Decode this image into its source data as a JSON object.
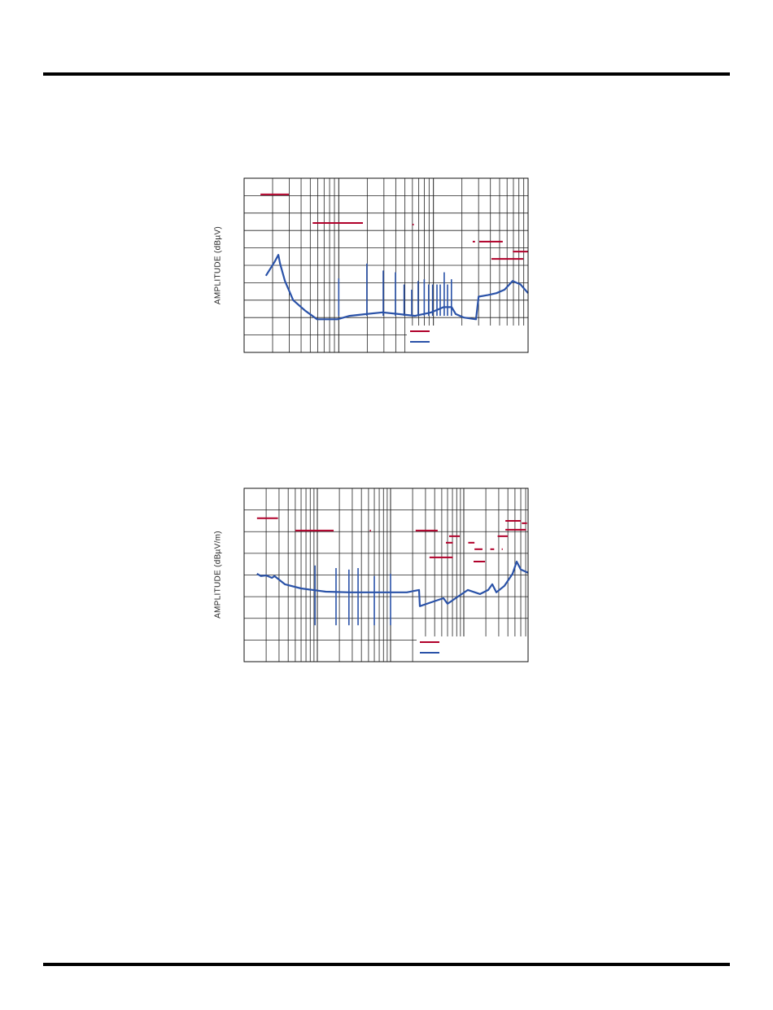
{
  "chart_data": [
    {
      "type": "line",
      "ylabel": "AMPLITUDE (dBµV)",
      "xscale": "log",
      "xlim": [
        1,
        1000
      ],
      "ylim": [
        0,
        10
      ],
      "grid": true,
      "legend": "bottom-right",
      "colors": {
        "limit": "#b0002a",
        "measured": "#2a52a8"
      },
      "measured": {
        "x": [
          1.7,
          2.1,
          2.3,
          2.4,
          2.7,
          3.3,
          4.4,
          5.9,
          7.2,
          9.7,
          13,
          19.5,
          29,
          43,
          64,
          95,
          128,
          156,
          172,
          210,
          282,
          300,
          380,
          463,
          563,
          687,
          832,
          1000
        ],
        "y": [
          4.4,
          5.2,
          5.6,
          5.1,
          4.1,
          3.0,
          2.4,
          1.9,
          1.9,
          1.9,
          2.1,
          2.2,
          2.3,
          2.2,
          2.1,
          2.3,
          2.6,
          2.6,
          2.2,
          2.0,
          1.9,
          3.2,
          3.3,
          3.4,
          3.6,
          4.1,
          3.9,
          3.4
        ]
      },
      "spikes": [
        [
          10,
          4.25
        ],
        [
          19.8,
          5.1
        ],
        [
          29.5,
          4.7
        ],
        [
          39.7,
          4.6
        ],
        [
          49,
          3.9
        ],
        [
          59,
          3.6
        ],
        [
          69,
          4.1
        ],
        [
          80,
          4.2
        ],
        [
          89,
          3.9
        ],
        [
          98,
          3.9
        ],
        [
          109,
          3.9
        ],
        [
          118,
          3.9
        ],
        [
          130,
          4.6
        ],
        [
          141,
          3.9
        ],
        [
          155,
          4.2
        ]
      ],
      "limits": [
        [
          1.49,
          2.97,
          9.07
        ],
        [
          5.3,
          18,
          7.43
        ],
        [
          60,
          62,
          7.34
        ],
        [
          260,
          275,
          6.36
        ],
        [
          305,
          540,
          6.36
        ],
        [
          410,
          890,
          5.37
        ],
        [
          690,
          1000,
          5.79
        ]
      ]
    },
    {
      "type": "line",
      "ylabel": "AMPLITUDE (dBµV/m)",
      "xscale": "log",
      "xlim": [
        1,
        7550
      ],
      "ylim": [
        0,
        8
      ],
      "grid": true,
      "legend": "bottom-right",
      "colors": {
        "limit": "#b0002a",
        "measured": "#2a52a8"
      },
      "measured": {
        "x": [
          1.5,
          1.7,
          2,
          2.4,
          2.6,
          3.6,
          6,
          13,
          28,
          77,
          167,
          245,
          251,
          360,
          527,
          600,
          774,
          1136,
          1668,
          2154,
          2448,
          2783,
          3594,
          4642,
          5275,
          5995,
          7550
        ],
        "y": [
          4.06,
          3.95,
          3.98,
          3.87,
          3.95,
          3.57,
          3.38,
          3.23,
          3.2,
          3.2,
          3.2,
          3.31,
          2.56,
          2.74,
          2.93,
          2.67,
          2.93,
          3.31,
          3.12,
          3.31,
          3.57,
          3.2,
          3.5,
          4.06,
          4.62,
          4.25,
          4.1
        ]
      },
      "spikes": [
        [
          9.3,
          4.44
        ],
        [
          18,
          4.32
        ],
        [
          27,
          4.25
        ],
        [
          36,
          4.32
        ],
        [
          60,
          3.95
        ],
        [
          100,
          4.06
        ]
      ],
      "limits": [
        [
          1.5,
          2.9,
          6.62
        ],
        [
          5,
          16.7,
          6.05
        ],
        [
          52,
          54,
          6.05
        ],
        [
          220,
          440,
          6.05
        ],
        [
          340,
          710,
          4.81
        ],
        [
          570,
          710,
          5.49
        ],
        [
          630,
          880,
          5.79
        ],
        [
          1150,
          1400,
          5.49
        ],
        [
          1400,
          1800,
          5.19
        ],
        [
          1360,
          1950,
          4.62
        ],
        [
          2300,
          2600,
          5.19
        ],
        [
          3300,
          3400,
          5.19
        ],
        [
          2900,
          4000,
          5.79
        ],
        [
          3700,
          6000,
          6.5
        ],
        [
          3700,
          7100,
          6.09
        ],
        [
          6200,
          7300,
          6.39
        ]
      ]
    }
  ]
}
